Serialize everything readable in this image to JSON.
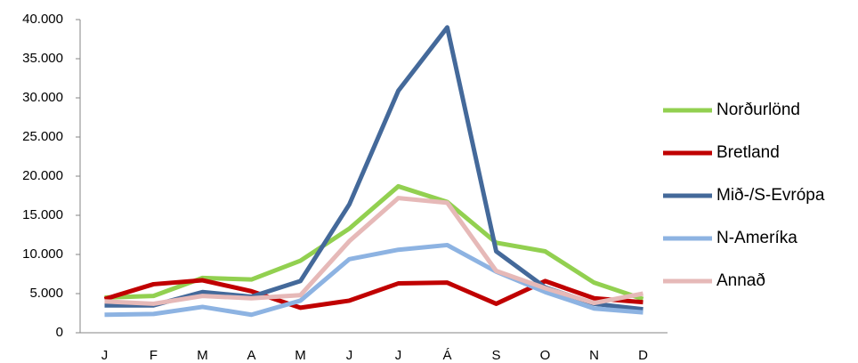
{
  "chart_data": {
    "type": "line",
    "categories": [
      "J",
      "F",
      "M",
      "A",
      "M",
      "J",
      "J",
      "Á",
      "S",
      "O",
      "N",
      "D"
    ],
    "series": [
      {
        "name": "Norðurlönd",
        "color": "#92d050",
        "values": [
          4500,
          4700,
          7000,
          6800,
          9200,
          13300,
          18700,
          16700,
          11500,
          10400,
          6400,
          4300
        ]
      },
      {
        "name": "Bretland",
        "color": "#c00000",
        "values": [
          4300,
          6200,
          6700,
          5300,
          3200,
          4100,
          6300,
          6400,
          3700,
          6600,
          4400,
          3900
        ]
      },
      {
        "name": "Mið-/S-Evrópa",
        "color": "#44699a",
        "values": [
          3500,
          3500,
          5200,
          4600,
          6600,
          16400,
          30900,
          39000,
          10400,
          5800,
          3700,
          3000
        ]
      },
      {
        "name": "N-Ameríka",
        "color": "#8db3e2",
        "values": [
          2300,
          2400,
          3300,
          2300,
          4100,
          9400,
          10600,
          11200,
          7800,
          5200,
          3100,
          2600
        ]
      },
      {
        "name": "Annað",
        "color": "#e6b9b8",
        "values": [
          4000,
          3700,
          4700,
          4400,
          4800,
          11700,
          17200,
          16600,
          7900,
          5700,
          3800,
          5000
        ]
      }
    ],
    "ylim": [
      0,
      40000
    ],
    "yticks": [
      0,
      {
        "value": 5000,
        "label": "5.000"
      },
      {
        "value": 10000,
        "label": "10.000"
      },
      {
        "value": 15000,
        "label": "15.000"
      },
      {
        "value": 20000,
        "label": "20.000"
      },
      {
        "value": 25000,
        "label": "25.000"
      },
      {
        "value": 30000,
        "label": "30.000"
      },
      {
        "value": 35000,
        "label": "35.000"
      },
      {
        "value": 40000,
        "label": "40.000"
      }
    ],
    "legend": "right"
  }
}
